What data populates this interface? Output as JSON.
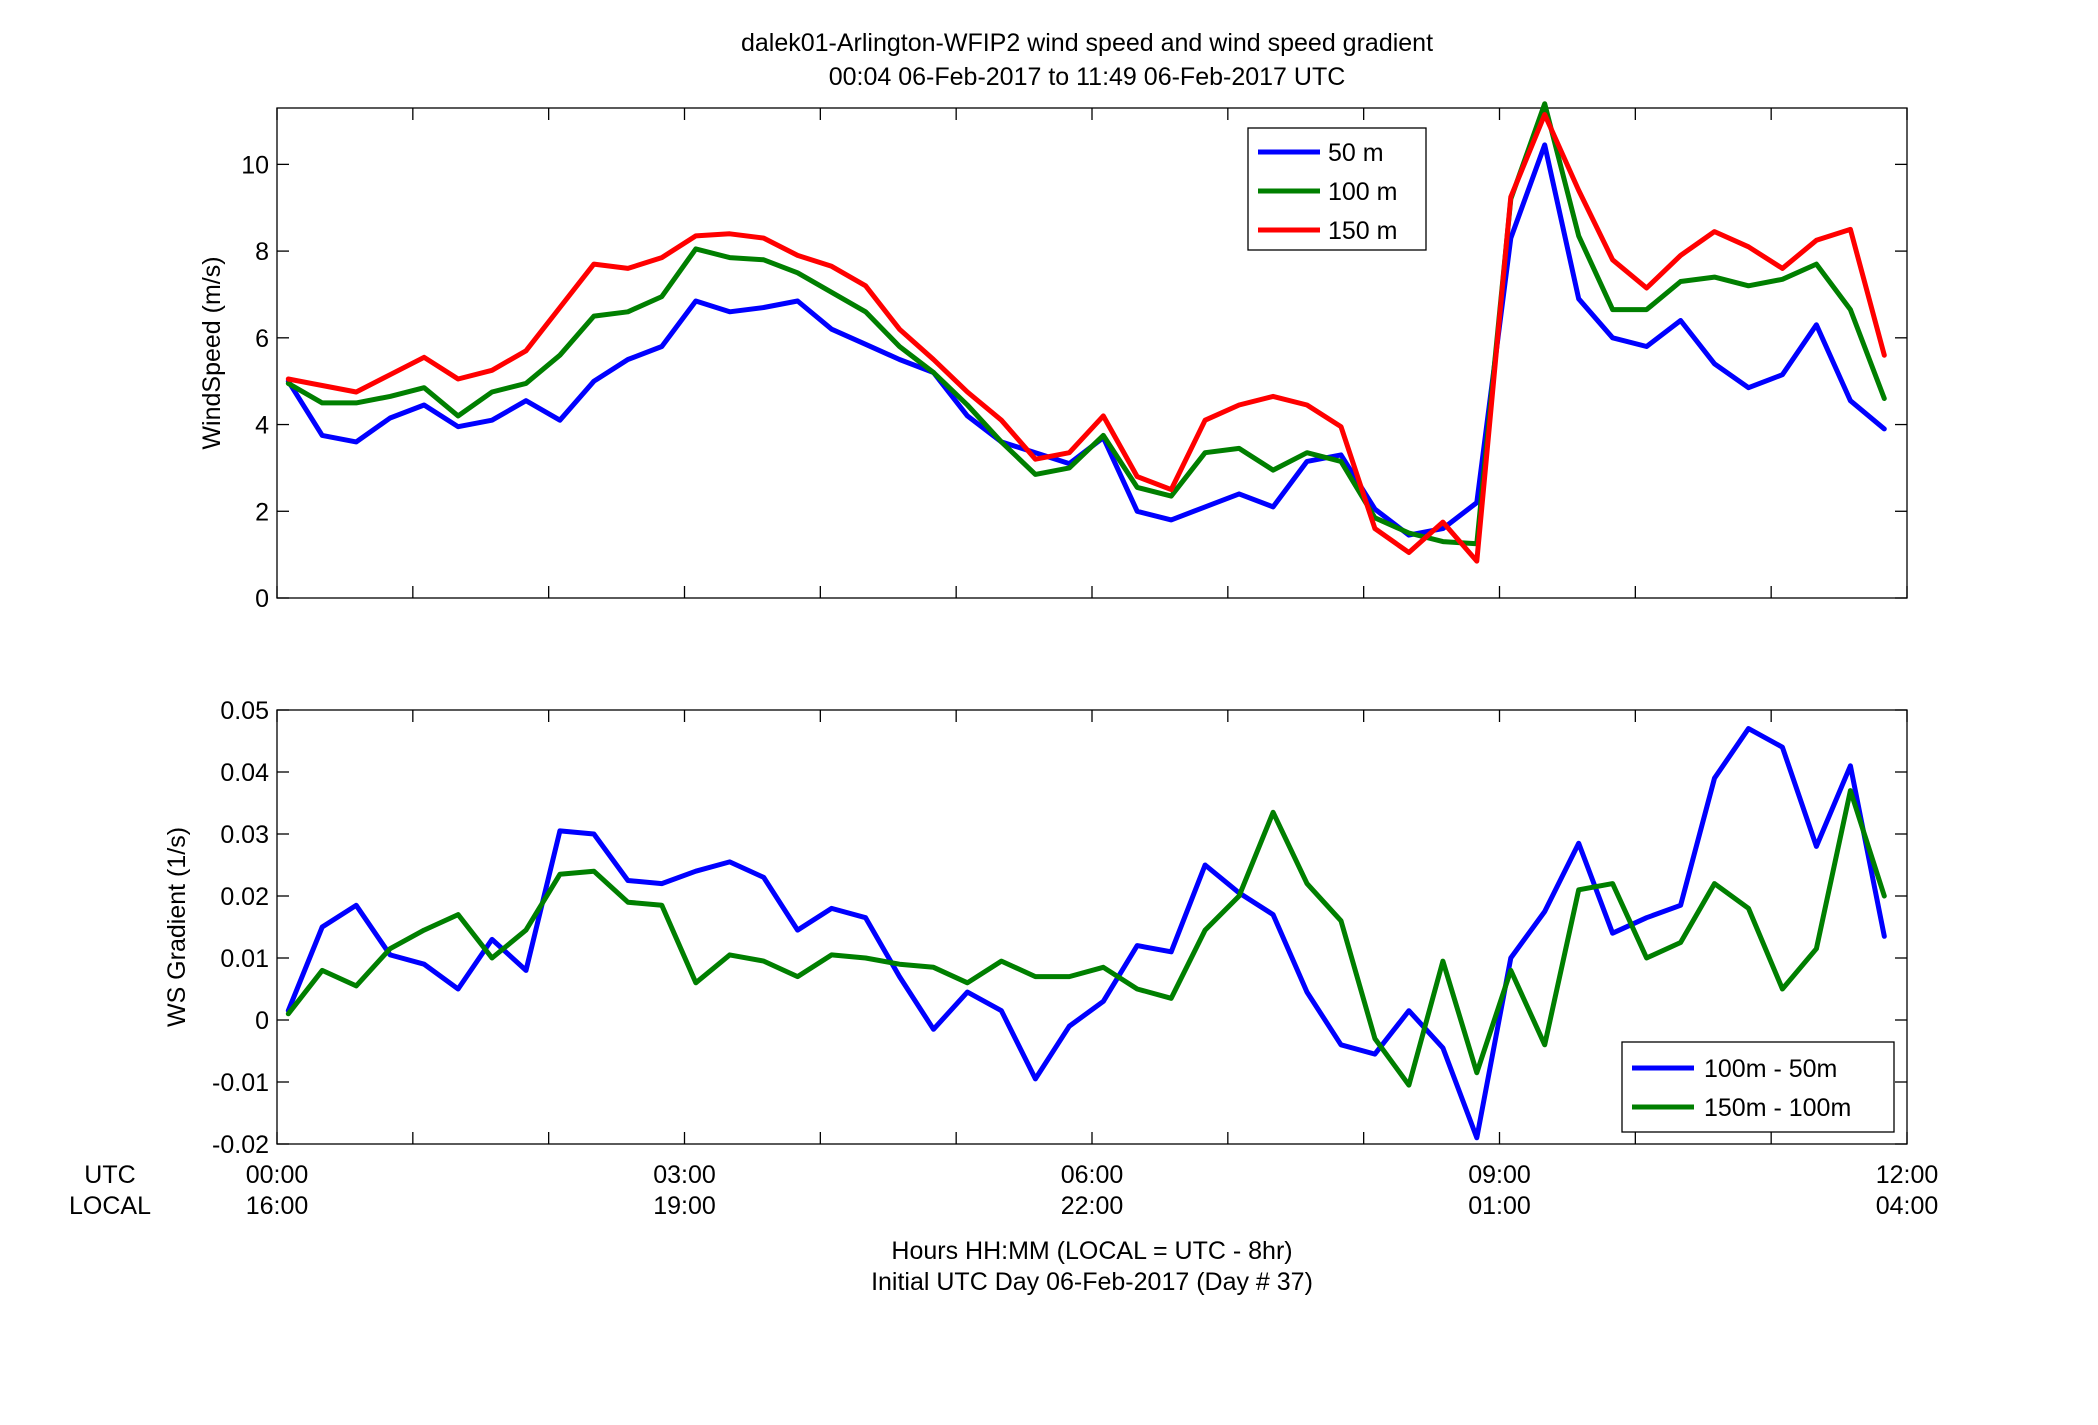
{
  "chart_data": [
    {
      "type": "line",
      "title": "dalek01-Arlington-WFIP2  wind speed and wind speed gradient",
      "subtitle": "00:04 06-Feb-2017 to 11:49 06-Feb-2017  UTC",
      "ylabel": "WindSpeed (m/s)",
      "xlim": [
        0,
        12
      ],
      "ylim": [
        0,
        11.3
      ],
      "yticks": [
        0,
        2,
        4,
        6,
        8,
        10
      ],
      "ytick_labels": [
        "0",
        "2",
        "4",
        "6",
        "8",
        "10"
      ],
      "legend_position": "top-right",
      "grid": false,
      "x": [
        0.083,
        0.333,
        0.583,
        0.833,
        1.083,
        1.333,
        1.583,
        1.833,
        2.083,
        2.333,
        2.583,
        2.833,
        3.083,
        3.333,
        3.583,
        3.833,
        4.083,
        4.333,
        4.583,
        4.833,
        5.083,
        5.333,
        5.583,
        5.833,
        6.083,
        6.333,
        6.583,
        6.833,
        7.083,
        7.333,
        7.583,
        7.833,
        8.083,
        8.333,
        8.583,
        8.833,
        9.083,
        9.333,
        9.583,
        9.833,
        10.083,
        10.333,
        10.583,
        10.833,
        11.083,
        11.333,
        11.583,
        11.833
      ],
      "series": [
        {
          "name": "50 m",
          "color": "#0000ff",
          "values": [
            5.0,
            3.75,
            3.6,
            4.15,
            4.45,
            3.95,
            4.1,
            4.55,
            4.1,
            5.0,
            5.5,
            5.8,
            6.85,
            6.6,
            6.7,
            6.85,
            6.2,
            5.85,
            5.5,
            5.2,
            4.2,
            3.6,
            3.35,
            3.1,
            3.7,
            2.0,
            1.8,
            2.1,
            2.4,
            2.1,
            3.15,
            3.3,
            2.05,
            1.45,
            1.6,
            2.2,
            8.3,
            10.45,
            6.9,
            6.0,
            5.8,
            6.4,
            5.4,
            4.85,
            5.15,
            6.3,
            4.55,
            3.9
          ]
        },
        {
          "name": "100 m",
          "color": "#007f00",
          "values": [
            4.95,
            4.5,
            4.5,
            4.65,
            4.85,
            4.2,
            4.75,
            4.95,
            5.6,
            6.5,
            6.6,
            6.95,
            8.05,
            7.85,
            7.8,
            7.5,
            7.05,
            6.6,
            5.8,
            5.2,
            4.45,
            3.6,
            2.85,
            3.0,
            3.75,
            2.55,
            2.35,
            3.35,
            3.45,
            2.95,
            3.35,
            3.15,
            1.85,
            1.5,
            1.3,
            1.25,
            9.2,
            11.4,
            8.35,
            6.65,
            6.65,
            7.3,
            7.4,
            7.2,
            7.35,
            7.7,
            6.65,
            4.6
          ]
        },
        {
          "name": "150 m",
          "color": "#ff0000",
          "values": [
            5.05,
            4.9,
            4.75,
            5.15,
            5.55,
            5.05,
            5.25,
            5.7,
            6.7,
            7.7,
            7.6,
            7.85,
            8.35,
            8.4,
            8.3,
            7.9,
            7.65,
            7.2,
            6.2,
            5.5,
            4.75,
            4.1,
            3.2,
            3.35,
            4.2,
            2.8,
            2.5,
            4.1,
            4.45,
            4.65,
            4.45,
            3.95,
            1.6,
            1.05,
            1.75,
            0.85,
            9.25,
            11.15,
            9.4,
            7.8,
            7.15,
            7.9,
            8.45,
            8.1,
            7.6,
            8.25,
            8.5,
            5.6
          ]
        }
      ]
    },
    {
      "type": "line",
      "ylabel": "WS Gradient (1/s)",
      "xlim": [
        0,
        12
      ],
      "ylim": [
        -0.02,
        0.05
      ],
      "yticks": [
        -0.02,
        -0.01,
        0,
        0.01,
        0.02,
        0.03,
        0.04,
        0.05
      ],
      "ytick_labels": [
        "-0.02",
        "-0.01",
        "0",
        "0.01",
        "0.02",
        "0.03",
        "0.04",
        "0.05"
      ],
      "legend_position": "bottom-right",
      "grid": false,
      "x": [
        0.083,
        0.333,
        0.583,
        0.833,
        1.083,
        1.333,
        1.583,
        1.833,
        2.083,
        2.333,
        2.583,
        2.833,
        3.083,
        3.333,
        3.583,
        3.833,
        4.083,
        4.333,
        4.583,
        4.833,
        5.083,
        5.333,
        5.583,
        5.833,
        6.083,
        6.333,
        6.583,
        6.833,
        7.083,
        7.333,
        7.583,
        7.833,
        8.083,
        8.333,
        8.583,
        8.833,
        9.083,
        9.333,
        9.583,
        9.833,
        10.083,
        10.333,
        10.583,
        10.833,
        11.083,
        11.333,
        11.583,
        11.833
      ],
      "series": [
        {
          "name": "100m - 50m",
          "color": "#0000ff",
          "values": [
            0.0015,
            0.015,
            0.0185,
            0.0105,
            0.009,
            0.005,
            0.013,
            0.008,
            0.0305,
            0.03,
            0.0225,
            0.022,
            0.024,
            0.0255,
            0.023,
            0.0145,
            0.018,
            0.0165,
            0.007,
            -0.0015,
            0.0045,
            0.0015,
            -0.0095,
            -0.001,
            0.003,
            0.012,
            0.011,
            0.025,
            0.0205,
            0.017,
            0.0045,
            -0.004,
            -0.0055,
            0.0015,
            -0.0045,
            -0.019,
            0.01,
            0.0175,
            0.0285,
            0.014,
            0.0165,
            0.0185,
            0.039,
            0.047,
            0.044,
            0.028,
            0.041,
            0.0135
          ]
        },
        {
          "name": "150m - 100m",
          "color": "#007f00",
          "values": [
            0.001,
            0.008,
            0.0055,
            0.0115,
            0.0145,
            0.017,
            0.01,
            0.0145,
            0.0235,
            0.024,
            0.019,
            0.0185,
            0.006,
            0.0105,
            0.0095,
            0.007,
            0.0105,
            0.01,
            0.009,
            0.0085,
            0.006,
            0.0095,
            0.007,
            0.007,
            0.0085,
            0.005,
            0.0035,
            0.0145,
            0.02,
            0.0335,
            0.022,
            0.016,
            -0.003,
            -0.0105,
            0.0095,
            -0.0085,
            0.008,
            -0.004,
            0.021,
            0.022,
            0.01,
            0.0125,
            0.022,
            0.018,
            0.005,
            0.0115,
            0.037,
            0.02
          ]
        }
      ]
    }
  ],
  "x_axis": {
    "row_labels": [
      "UTC",
      "LOCAL"
    ],
    "utc_ticks": [
      "00:00",
      "03:00",
      "06:00",
      "09:00",
      "12:00"
    ],
    "local_ticks": [
      "16:00",
      "19:00",
      "22:00",
      "01:00",
      "04:00"
    ],
    "xlabel_line1": "Hours HH:MM  (LOCAL = UTC - 8hr)",
    "xlabel_line2": "Initial UTC Day 06-Feb-2017 (Day # 37)"
  }
}
